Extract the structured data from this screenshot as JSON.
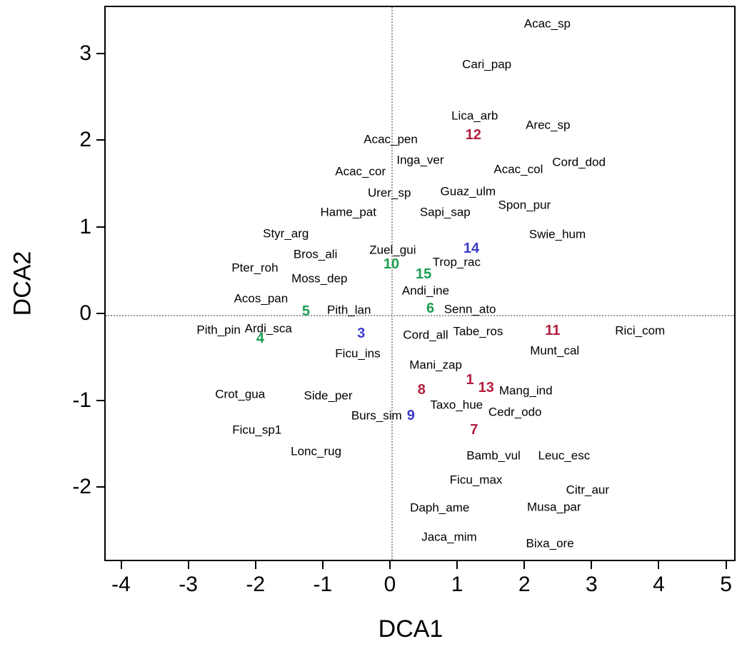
{
  "chart_data": {
    "type": "scatter",
    "title": "",
    "xlabel": "DCA1",
    "ylabel": "DCA2",
    "xlim": [
      -4.25,
      5.1
    ],
    "ylim": [
      -2.82,
      3.55
    ],
    "x_ticks": [
      -4,
      -3,
      -2,
      -1,
      0,
      1,
      2,
      3,
      4,
      5
    ],
    "y_ticks": [
      -2,
      -1,
      0,
      1,
      2,
      3
    ],
    "grid": false,
    "legend": "none",
    "reference_lines": [
      {
        "axis": "x",
        "value": 0,
        "style": "dotted"
      },
      {
        "axis": "y",
        "value": 0,
        "style": "dotted"
      }
    ],
    "colors": {
      "species": "#000000",
      "group_red": "#b01f3e",
      "group_blue": "#3c3ccc",
      "group_green": "#1c9e50",
      "reference_line": "#9a9a9a",
      "axis": "#000000"
    },
    "species_points": [
      {
        "label": "Acac_sp",
        "x": 2.32,
        "y": 3.36
      },
      {
        "label": "Cari_pap",
        "x": 1.42,
        "y": 2.89
      },
      {
        "label": "Lica_arb",
        "x": 1.24,
        "y": 2.3
      },
      {
        "label": "Arec_sp",
        "x": 2.33,
        "y": 2.19
      },
      {
        "label": "Acac_pen",
        "x": -0.01,
        "y": 2.03
      },
      {
        "label": "Inga_ver",
        "x": 0.43,
        "y": 1.79
      },
      {
        "label": "Acac_cor",
        "x": -0.46,
        "y": 1.66
      },
      {
        "label": "Acac_col",
        "x": 1.89,
        "y": 1.68
      },
      {
        "label": "Cord_dod",
        "x": 2.79,
        "y": 1.76
      },
      {
        "label": "Urer_sp",
        "x": -0.03,
        "y": 1.41
      },
      {
        "label": "Guaz_ulm",
        "x": 1.14,
        "y": 1.43
      },
      {
        "label": "Hame_pat",
        "x": -0.64,
        "y": 1.19
      },
      {
        "label": "Sapi_sap",
        "x": 0.8,
        "y": 1.19
      },
      {
        "label": "Spon_pur",
        "x": 1.98,
        "y": 1.27
      },
      {
        "label": "Styr_arg",
        "x": -1.57,
        "y": 0.94
      },
      {
        "label": "Swie_hum",
        "x": 2.47,
        "y": 0.93
      },
      {
        "label": "Bros_ali",
        "x": -1.13,
        "y": 0.7
      },
      {
        "label": "Zuel_gui",
        "x": 0.02,
        "y": 0.75
      },
      {
        "label": "Pter_roh",
        "x": -2.03,
        "y": 0.55
      },
      {
        "label": "Trop_rac",
        "x": 0.97,
        "y": 0.61
      },
      {
        "label": "Moss_dep",
        "x": -1.07,
        "y": 0.42
      },
      {
        "label": "Acos_pan",
        "x": -1.94,
        "y": 0.19
      },
      {
        "label": "Andi_ine",
        "x": 0.51,
        "y": 0.28
      },
      {
        "label": "Pith_lan",
        "x": -0.63,
        "y": 0.06
      },
      {
        "label": "Senn_ato",
        "x": 1.17,
        "y": 0.07
      },
      {
        "label": "Pith_pin",
        "x": -2.57,
        "y": -0.17
      },
      {
        "label": "Ardi_sca",
        "x": -1.83,
        "y": -0.15
      },
      {
        "label": "Cord_all",
        "x": 0.51,
        "y": -0.23
      },
      {
        "label": "Tabe_ros",
        "x": 1.29,
        "y": -0.19
      },
      {
        "label": "Rici_com",
        "x": 3.7,
        "y": -0.18
      },
      {
        "label": "Munt_cal",
        "x": 2.43,
        "y": -0.41
      },
      {
        "label": "Ficu_ins",
        "x": -0.5,
        "y": -0.44
      },
      {
        "label": "Mani_zap",
        "x": 0.66,
        "y": -0.57
      },
      {
        "label": "Crot_gua",
        "x": -2.25,
        "y": -0.91
      },
      {
        "label": "Side_per",
        "x": -0.94,
        "y": -0.93
      },
      {
        "label": "Mang_ind",
        "x": 2.0,
        "y": -0.87
      },
      {
        "label": "Taxo_hue",
        "x": 0.97,
        "y": -1.03
      },
      {
        "label": "Cedr_odo",
        "x": 1.84,
        "y": -1.12
      },
      {
        "label": "Burs_sim",
        "x": -0.22,
        "y": -1.16
      },
      {
        "label": "Ficu_sp1",
        "x": -2.0,
        "y": -1.32
      },
      {
        "label": "Lonc_rug",
        "x": -1.12,
        "y": -1.57
      },
      {
        "label": "Bamb_vul",
        "x": 1.52,
        "y": -1.62
      },
      {
        "label": "Leuc_esc",
        "x": 2.57,
        "y": -1.62
      },
      {
        "label": "Ficu_max",
        "x": 1.26,
        "y": -1.9
      },
      {
        "label": "Citr_aur",
        "x": 2.92,
        "y": -2.01
      },
      {
        "label": "Daph_ame",
        "x": 0.72,
        "y": -2.22
      },
      {
        "label": "Musa_par",
        "x": 2.42,
        "y": -2.21
      },
      {
        "label": "Jaca_mim",
        "x": 0.86,
        "y": -2.56
      },
      {
        "label": "Bixa_ore",
        "x": 2.36,
        "y": -2.63
      }
    ],
    "site_points": [
      {
        "label": "12",
        "group": "red",
        "x": 1.22,
        "y": 2.08
      },
      {
        "label": "14",
        "group": "blue",
        "x": 1.19,
        "y": 0.77
      },
      {
        "label": "10",
        "group": "green",
        "x": 0.0,
        "y": 0.59
      },
      {
        "label": "15",
        "group": "green",
        "x": 0.48,
        "y": 0.47
      },
      {
        "label": "5",
        "group": "green",
        "x": -1.27,
        "y": 0.04
      },
      {
        "label": "6",
        "group": "green",
        "x": 0.58,
        "y": 0.08
      },
      {
        "label": "4",
        "group": "green",
        "x": -1.95,
        "y": -0.27
      },
      {
        "label": "3",
        "group": "blue",
        "x": -0.45,
        "y": -0.21
      },
      {
        "label": "11",
        "group": "red",
        "x": 2.4,
        "y": -0.18
      },
      {
        "label": "1",
        "group": "red",
        "x": 1.17,
        "y": -0.75
      },
      {
        "label": "8",
        "group": "red",
        "x": 0.45,
        "y": -0.86
      },
      {
        "label": "13",
        "group": "red",
        "x": 1.41,
        "y": -0.84
      },
      {
        "label": "9",
        "group": "blue",
        "x": 0.29,
        "y": -1.16
      },
      {
        "label": "7",
        "group": "red",
        "x": 1.23,
        "y": -1.32
      }
    ]
  }
}
